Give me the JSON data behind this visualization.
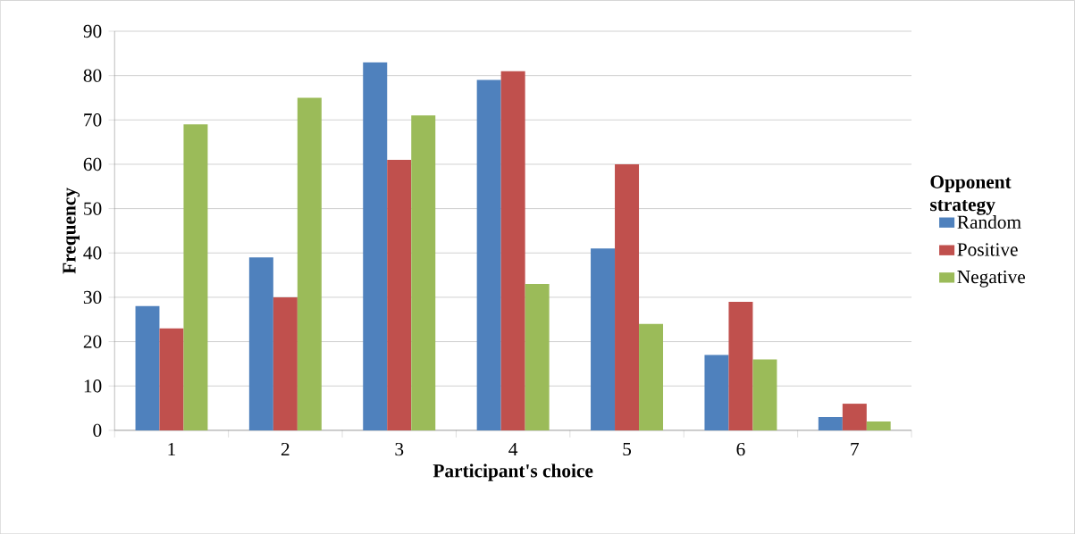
{
  "chart_data": {
    "type": "bar",
    "xlabel": "Participant's choice",
    "ylabel": "Frequency",
    "legend_title": "Opponent strategy",
    "categories": [
      "1",
      "2",
      "3",
      "4",
      "5",
      "6",
      "7"
    ],
    "series": [
      {
        "name": "Random",
        "color": "#4f81bd",
        "values": [
          28,
          39,
          83,
          79,
          41,
          17,
          3
        ]
      },
      {
        "name": "Positive",
        "color": "#c0504d",
        "values": [
          23,
          30,
          61,
          81,
          60,
          29,
          6
        ]
      },
      {
        "name": "Negative",
        "color": "#9bbb59",
        "values": [
          69,
          75,
          71,
          33,
          24,
          16,
          2
        ]
      }
    ],
    "ylim": [
      0,
      90
    ],
    "yticks": [
      0,
      10,
      20,
      30,
      40,
      50,
      60,
      70,
      80,
      90
    ],
    "grid": "y",
    "legend": "right"
  }
}
